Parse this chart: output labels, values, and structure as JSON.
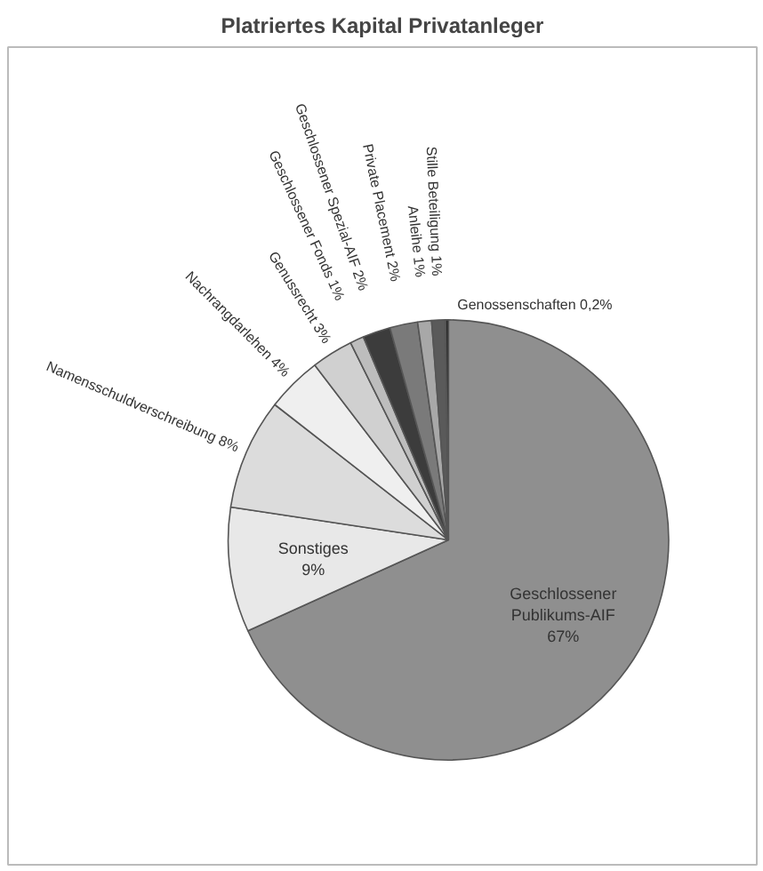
{
  "chart_data": {
    "type": "pie",
    "title": "Platriertes Kapital Privatanleger",
    "categories": [
      "Geschlossener Publikums-AIF",
      "Sonstiges",
      "Namensschuldverschreibung",
      "Nachrangdarlehen",
      "Genussrecht",
      "Geschlossener Fonds",
      "Geschlossener Spezial-AIF",
      "Private Placement",
      "Anleihe",
      "Stille Beteiligung",
      "Genossenschaften"
    ],
    "values": [
      67,
      9,
      8,
      4,
      3,
      1,
      2,
      2,
      1,
      1,
      0.2
    ],
    "value_labels": [
      "67%",
      "9%",
      "8%",
      "4%",
      "3%",
      "1%",
      "2%",
      "2%",
      "1%",
      "1%",
      "0,2%"
    ],
    "colors": [
      "#8f8f8f",
      "#e8e8e8",
      "#dcdcdc",
      "#efefef",
      "#d0d0d0",
      "#bdbdbd",
      "#3c3c3c",
      "#7a7a7a",
      "#a8a8a8",
      "#5a5a5a",
      "#262626"
    ]
  }
}
